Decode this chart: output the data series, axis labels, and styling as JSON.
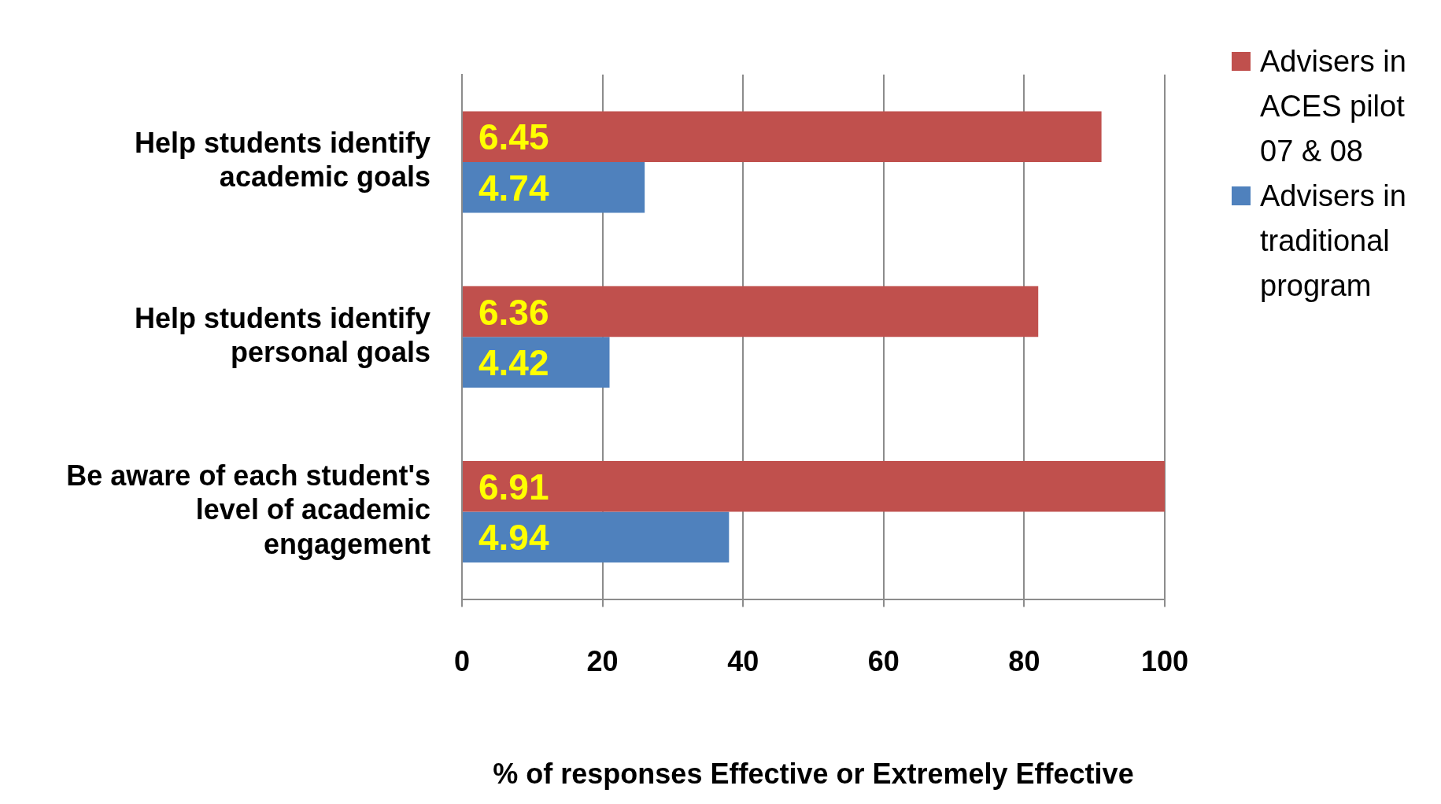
{
  "chart_data": {
    "type": "bar",
    "orientation": "horizontal",
    "xlabel": "% of responses Effective or Extremely Effective",
    "categories": [
      "Help students identify academic goals",
      "Help students identify personal goals",
      "Be aware of each student's level of academic engagement"
    ],
    "series": [
      {
        "name": "Advisers in ACES pilot 07 & 08",
        "color": "#c0504d",
        "values": [
          91,
          82,
          100
        ]
      },
      {
        "name": "Advisers in traditional program",
        "color": "#4f81bd",
        "values": [
          26,
          21,
          38
        ]
      }
    ],
    "annotations": [
      "6.45",
      "4.74",
      "6.36",
      "4.42",
      "6.91",
      "4.94"
    ],
    "xlim": [
      0,
      100
    ],
    "xticks": [
      0,
      20,
      40,
      60,
      80,
      100
    ],
    "grid": "x",
    "legend": "right"
  }
}
